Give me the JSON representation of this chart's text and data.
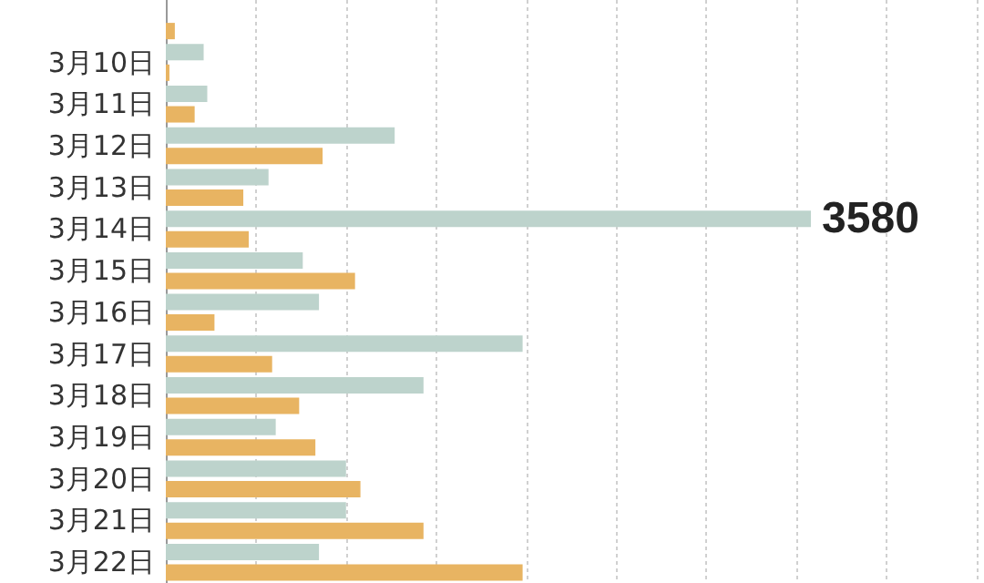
{
  "chart_data": {
    "type": "bar",
    "orientation": "horizontal",
    "categories": [
      null,
      "3月10日",
      "3月11日",
      "3月12日",
      "3月13日",
      "3月14日",
      "3月15日",
      "3月16日",
      "3月17日",
      "3月18日",
      "3月19日",
      "3月20日",
      "3月21日",
      "3月22日"
    ],
    "series": [
      {
        "color": "#bdd3cc",
        "values": [
          null,
          210,
          230,
          1270,
          570,
          3580,
          760,
          850,
          1980,
          1430,
          610,
          1000,
          1000,
          850
        ],
        "value_labels": [
          null,
          null,
          null,
          null,
          null,
          "3580",
          null,
          null,
          null,
          null,
          null,
          null,
          null,
          null
        ]
      },
      {
        "color": "#e8b462",
        "values": [
          50,
          20,
          160,
          870,
          430,
          460,
          1050,
          270,
          590,
          740,
          830,
          1080,
          1430,
          1980
        ]
      }
    ],
    "xlim": [
      0,
      4500
    ],
    "xticks": [
      {
        "value": 0,
        "label": null
      },
      {
        "value": 500,
        "label": null
      },
      {
        "value": 1000,
        "label": null
      },
      {
        "value": 1500,
        "label": null
      },
      {
        "value": 2000,
        "label": null
      },
      {
        "value": 2500,
        "label": null
      },
      {
        "value": 3000,
        "label": null
      },
      {
        "value": 3500,
        "label": null
      },
      {
        "value": 4000,
        "label": null
      },
      {
        "value": 4500,
        "label": null
      }
    ],
    "grid": "x",
    "tick_labels": "y"
  }
}
